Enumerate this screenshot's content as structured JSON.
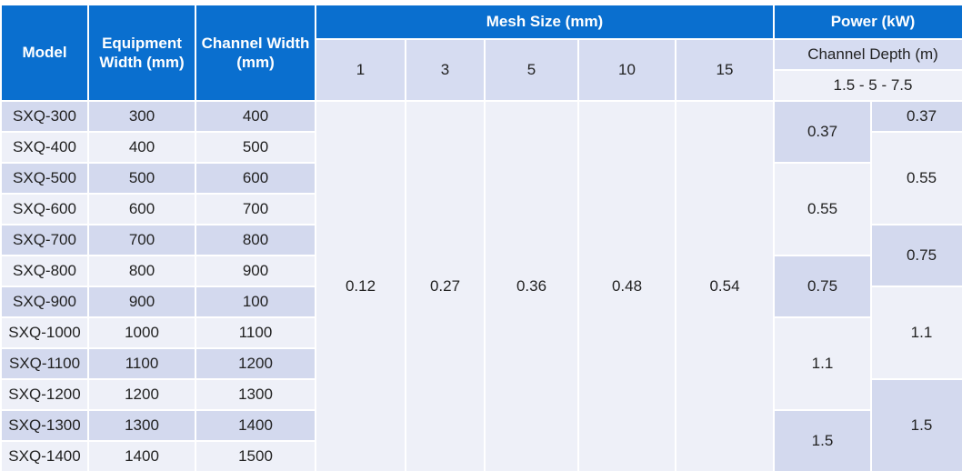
{
  "headers": {
    "model": "Model",
    "equipment_width": "Equipment Width (mm)",
    "channel_width": "Channel Width (mm)",
    "mesh_size": "Mesh Size (mm)",
    "power": "Power (kW)",
    "channel_depth": "Channel Depth (m)",
    "depth_range": "1.5 - 5 - 7.5",
    "mesh_values": [
      "1",
      "3",
      "5",
      "10",
      "15"
    ]
  },
  "rows": [
    {
      "model": "SXQ-300",
      "equipment_width": "300",
      "channel_width": "400"
    },
    {
      "model": "SXQ-400",
      "equipment_width": "400",
      "channel_width": "500"
    },
    {
      "model": "SXQ-500",
      "equipment_width": "500",
      "channel_width": "600"
    },
    {
      "model": "SXQ-600",
      "equipment_width": "600",
      "channel_width": "700"
    },
    {
      "model": "SXQ-700",
      "equipment_width": "700",
      "channel_width": "800"
    },
    {
      "model": "SXQ-800",
      "equipment_width": "800",
      "channel_width": "900"
    },
    {
      "model": "SXQ-900",
      "equipment_width": "900",
      "channel_width": "100"
    },
    {
      "model": "SXQ-1000",
      "equipment_width": "1000",
      "channel_width": "1100"
    },
    {
      "model": "SXQ-1100",
      "equipment_width": "1100",
      "channel_width": "1200"
    },
    {
      "model": "SXQ-1200",
      "equipment_width": "1200",
      "channel_width": "1300"
    },
    {
      "model": "SXQ-1300",
      "equipment_width": "1300",
      "channel_width": "1400"
    },
    {
      "model": "SXQ-1400",
      "equipment_width": "1400",
      "channel_width": "1500"
    }
  ],
  "mesh_values": [
    "0.12",
    "0.27",
    "0.36",
    "0.48",
    "0.54"
  ],
  "power_col1": [
    "0.37",
    "0.55",
    "0.75",
    "1.1",
    "1.5"
  ],
  "power_col2": [
    "0.37",
    "0.55",
    "0.75",
    "1.1",
    "1.5"
  ]
}
